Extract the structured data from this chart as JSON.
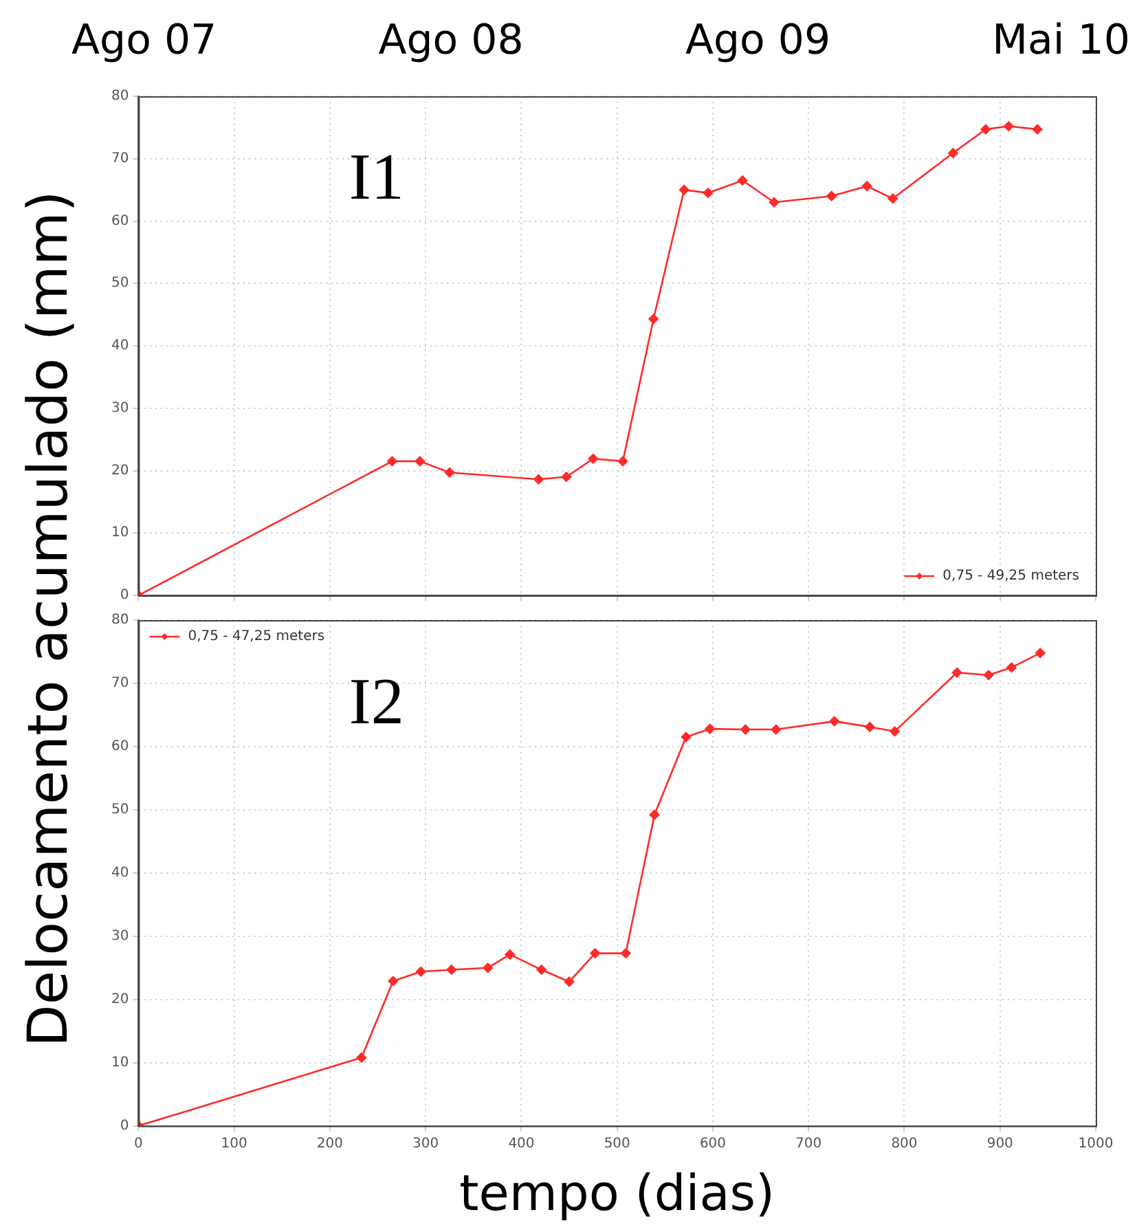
{
  "chart_data": [
    {
      "type": "line",
      "ylabel": "Delocamento acumulado (mm)",
      "annotations": [
        "I1",
        "Ago 07",
        "Ago 08",
        "Ago 09",
        "Mai 10"
      ],
      "series": [
        {
          "name": "0,75 - 49,25 meters",
          "color": "#ff2a2a",
          "x": [
            0,
            265,
            294,
            325,
            418,
            447,
            475,
            506,
            538,
            570,
            595,
            631,
            664,
            724,
            761,
            788,
            851,
            885,
            909,
            939
          ],
          "values": [
            0,
            21.5,
            21.5,
            19.7,
            18.6,
            19.0,
            21.9,
            21.5,
            44.3,
            65.0,
            64.5,
            66.5,
            63.0,
            64.0,
            65.6,
            63.6,
            70.9,
            74.7,
            75.2,
            74.7
          ]
        }
      ],
      "xlim": [
        0,
        1000
      ],
      "xticks": [
        0,
        100,
        200,
        300,
        400,
        500,
        600,
        700,
        800,
        900,
        1000
      ],
      "ylim": [
        0,
        80
      ],
      "yticks": [
        0,
        10,
        20,
        30,
        40,
        50,
        60,
        70,
        80
      ],
      "tick_labels": "y",
      "grid": true,
      "legend": "bottom right",
      "marker": "diamond",
      "line_style": "solid"
    },
    {
      "type": "line",
      "xlabel": "tempo (dias)",
      "annotations": [
        "I2"
      ],
      "series": [
        {
          "name": "0,75 - 47,25 meters",
          "color": "#ff2a2a",
          "x": [
            0,
            233,
            266,
            295,
            327,
            365,
            388,
            421,
            450,
            477,
            509,
            539,
            572,
            597,
            634,
            666,
            727,
            764,
            790,
            855,
            888,
            912,
            942
          ],
          "values": [
            0,
            10.8,
            22.9,
            24.4,
            24.7,
            25.0,
            27.1,
            24.7,
            22.8,
            27.3,
            27.3,
            49.2,
            61.5,
            62.8,
            62.7,
            62.7,
            64.0,
            63.1,
            62.4,
            71.7,
            71.3,
            72.5,
            74.8
          ]
        }
      ],
      "xlim": [
        0,
        1000
      ],
      "xticks": [
        0,
        100,
        200,
        300,
        400,
        500,
        600,
        700,
        800,
        900,
        1000
      ],
      "ylim": [
        0,
        80
      ],
      "yticks": [
        0,
        10,
        20,
        30,
        40,
        50,
        60,
        70,
        80
      ],
      "grid": true,
      "legend": "top left",
      "marker": "diamond",
      "line_style": "solid"
    }
  ]
}
